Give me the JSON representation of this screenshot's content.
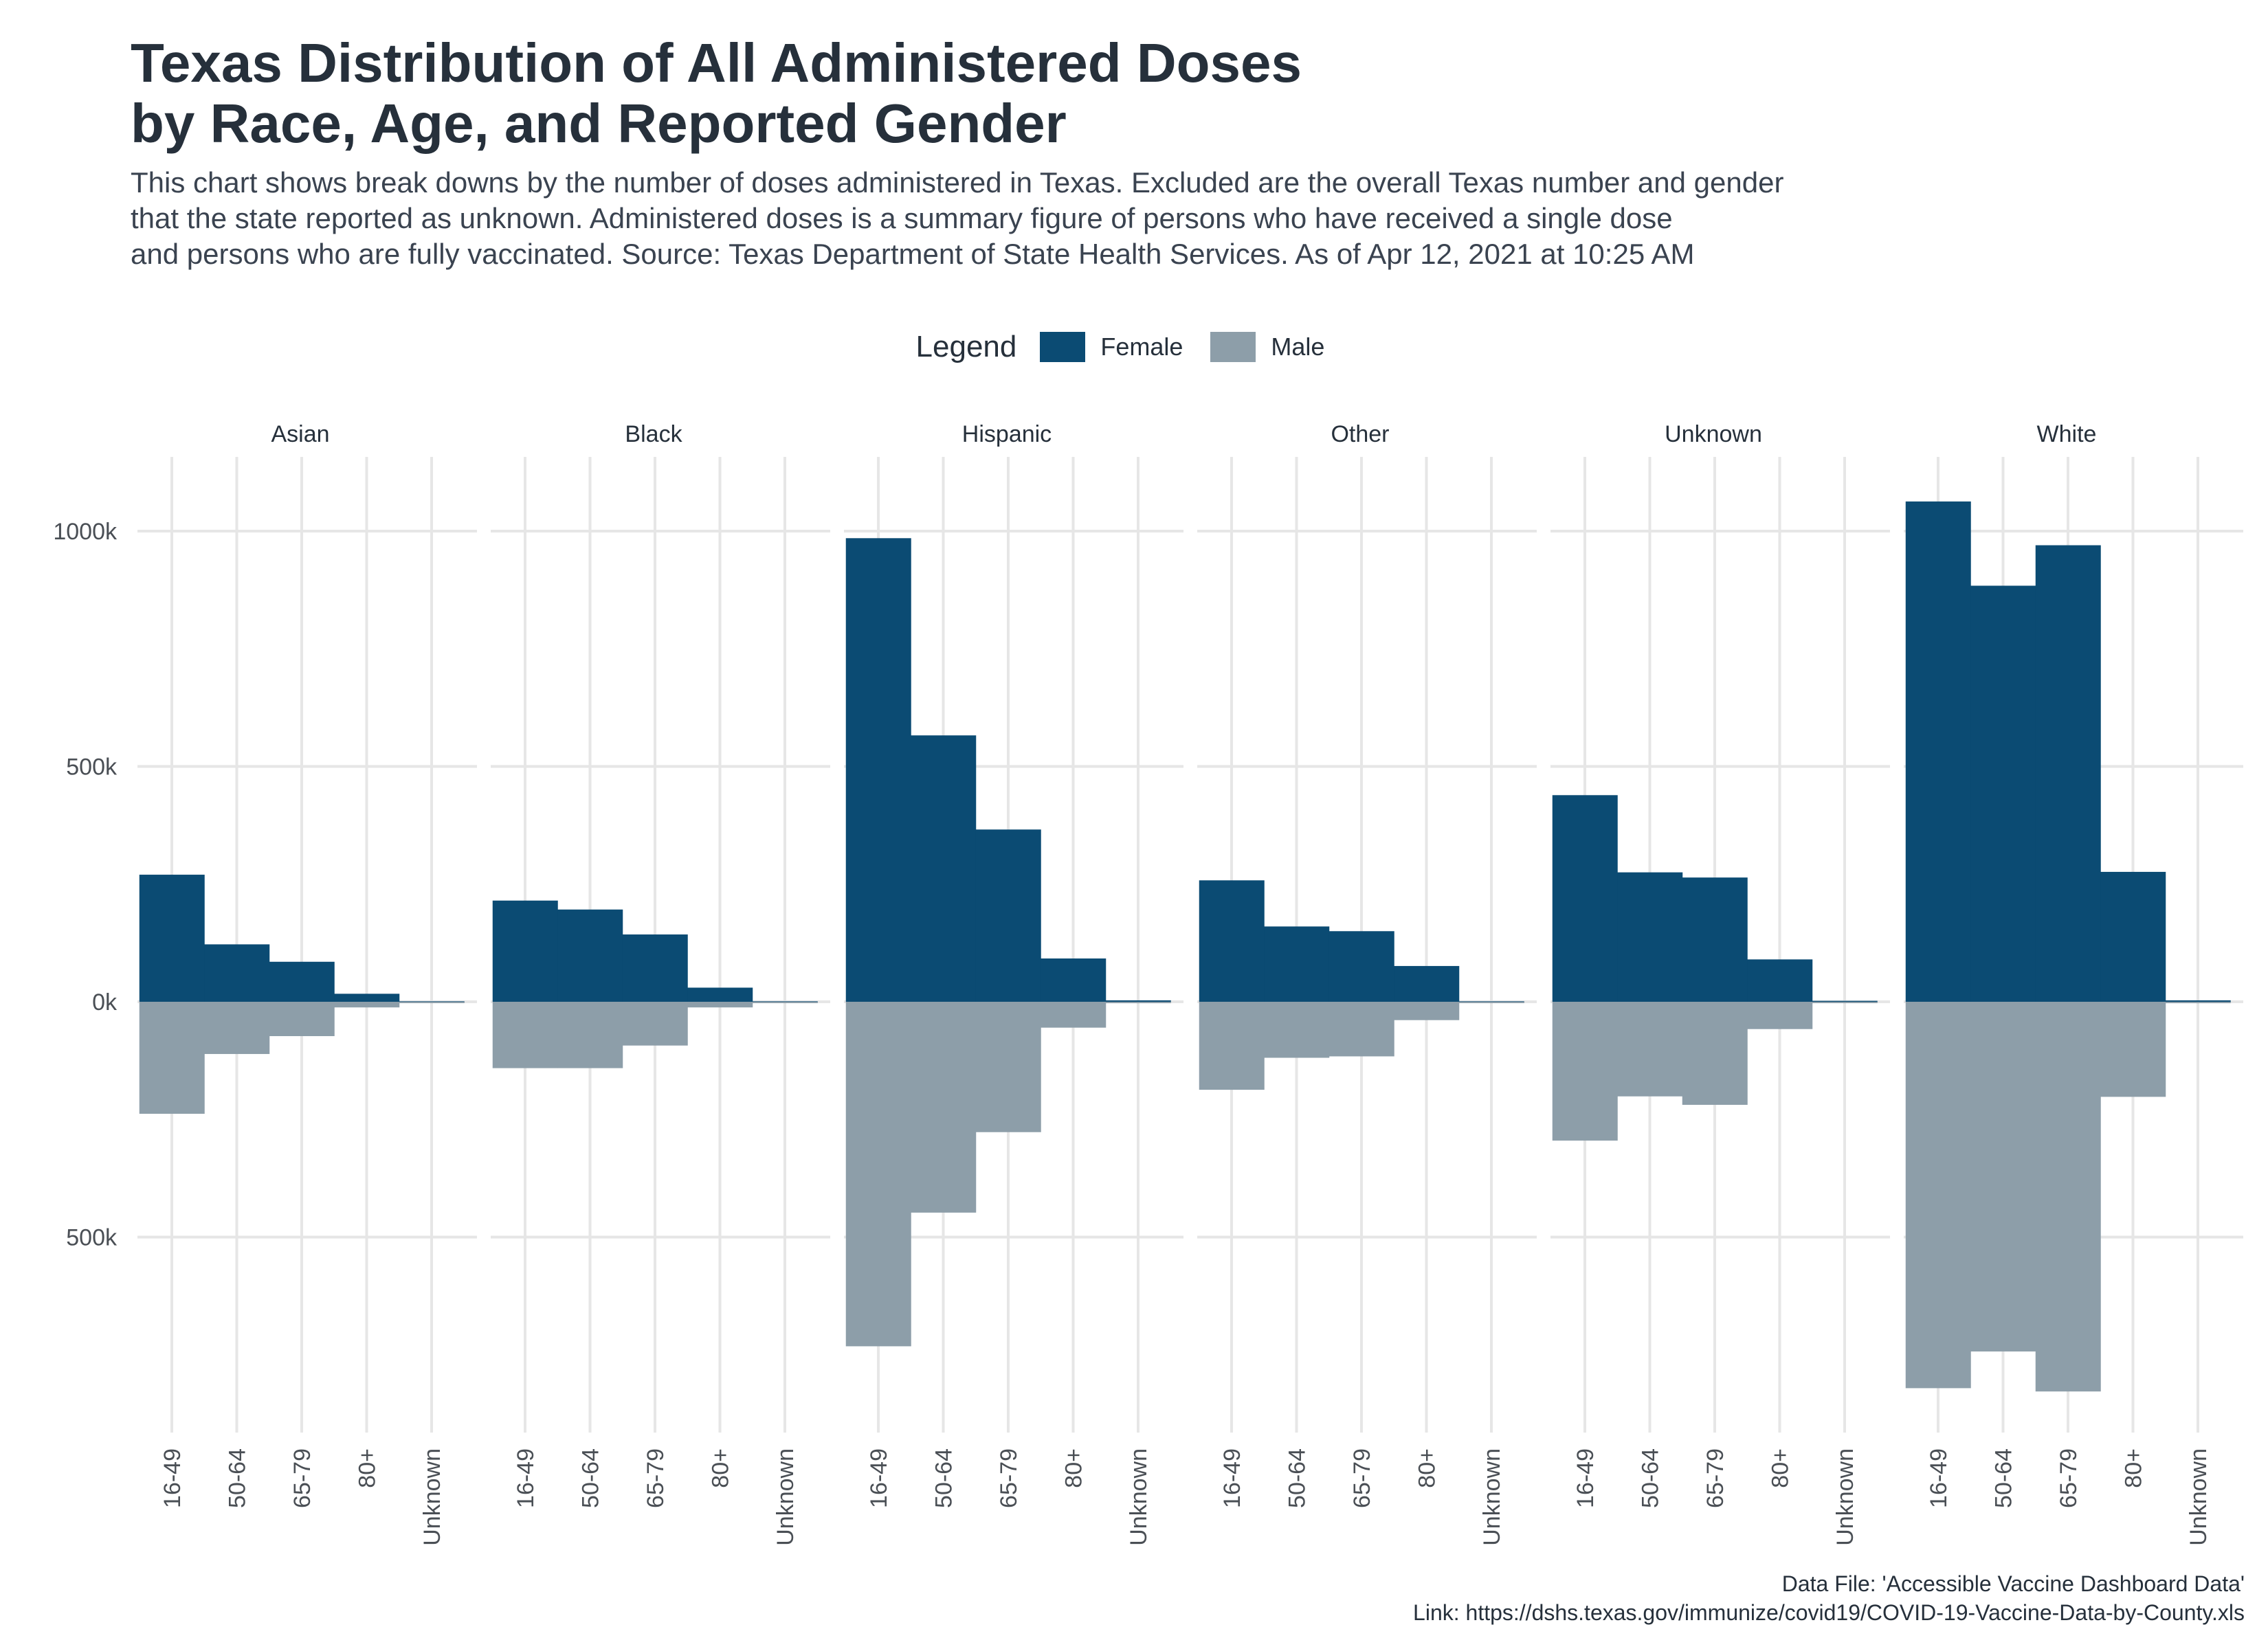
{
  "title": "Texas Distribution of All Administered Doses\nby Race, Age, and Reported Gender",
  "subtitle": "This chart shows break downs by the number of doses administered in Texas. Excluded are the overall Texas number and gender\nthat the state reported as unknown. Administered doses is a summary figure of persons who have received a single dose\nand persons who are fully vaccinated. Source: Texas Department of State Health Services. As of Apr 12, 2021 at 10:25 AM",
  "legend": {
    "title": "Legend",
    "items": [
      {
        "label": "Female",
        "color": "#0b4b73"
      },
      {
        "label": "Male",
        "color": "#8d9ea9"
      }
    ]
  },
  "caption": {
    "line1": "Data File: 'Accessible Vaccine Dashboard Data'",
    "line2": "Link: https://dshs.texas.gov/immunize/covid19/COVID-19-Vaccine-Data-by-County.xls"
  },
  "chart_data": {
    "type": "bar",
    "facets": [
      "Asian",
      "Black",
      "Hispanic",
      "Other",
      "Unknown",
      "White"
    ],
    "categories": [
      "16-49",
      "50-64",
      "65-79",
      "80+",
      "Unknown"
    ],
    "y_ticks": [
      {
        "value": 1000000,
        "label": "1000k"
      },
      {
        "value": 500000,
        "label": "500k"
      },
      {
        "value": 0,
        "label": "0k"
      },
      {
        "value": -500000,
        "label": "500k"
      }
    ],
    "ylim": [
      -900000,
      1150000
    ],
    "series": [
      {
        "name": "Female",
        "color": "#0b4b73",
        "values": {
          "Asian": [
            270000,
            122000,
            85000,
            17000,
            1000
          ],
          "Black": [
            215000,
            196000,
            143000,
            30000,
            1000
          ],
          "Hispanic": [
            985000,
            566000,
            366000,
            92000,
            3000
          ],
          "Other": [
            258000,
            160000,
            150000,
            76000,
            1000
          ],
          "Unknown": [
            439000,
            275000,
            264000,
            90000,
            2000
          ],
          "White": [
            1063000,
            884000,
            970000,
            276000,
            3000
          ]
        }
      },
      {
        "name": "Male",
        "color": "#8d9ea9",
        "values": {
          "Asian": [
            -238000,
            -111000,
            -73000,
            -12000,
            -1000
          ],
          "Black": [
            -141000,
            -141000,
            -93000,
            -12000,
            -1000
          ],
          "Hispanic": [
            -732000,
            -448000,
            -277000,
            -55000,
            -3000
          ],
          "Other": [
            -187000,
            -119000,
            -116000,
            -39000,
            -1000
          ],
          "Unknown": [
            -295000,
            -201000,
            -219000,
            -58000,
            -2000
          ],
          "White": [
            -821000,
            -743000,
            -828000,
            -202000,
            -3000
          ]
        }
      }
    ]
  }
}
